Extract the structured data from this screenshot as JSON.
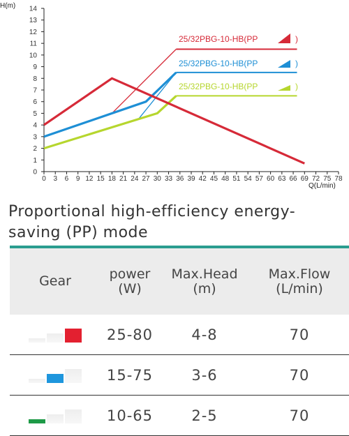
{
  "chart_data": {
    "type": "line",
    "ylabel": "H(m)",
    "xlabel": "Q(L/min)",
    "xlim": [
      0,
      78
    ],
    "ylim": [
      0,
      14
    ],
    "xticks": [
      0,
      3,
      6,
      9,
      12,
      15,
      18,
      21,
      24,
      27,
      30,
      33,
      36,
      39,
      42,
      45,
      48,
      51,
      54,
      57,
      60,
      63,
      66,
      69,
      72,
      75,
      78
    ],
    "yticks": [
      0,
      1,
      2,
      3,
      4,
      5,
      6,
      7,
      8,
      9,
      10,
      11,
      12,
      13,
      14
    ],
    "grid": false,
    "legend_position": "top-right",
    "series": [
      {
        "name": "25/32PBG-10-HB(PP",
        "legend_suffix": ")",
        "color": "#d62a38",
        "x": [
          0,
          18,
          69
        ],
        "y": [
          4.0,
          8.0,
          0.7
        ]
      },
      {
        "name": "25/32PBG-10-HB(PP",
        "legend_suffix": ")",
        "color": "#1e8fd5",
        "x": [
          0,
          27,
          35
        ],
        "y": [
          3.0,
          6.0,
          8.5
        ]
      },
      {
        "name": "25/32PBG-10-HB(PP",
        "legend_suffix": ")",
        "color": "#b6d62e",
        "x": [
          0,
          30,
          35
        ],
        "y": [
          2.0,
          5.0,
          6.5
        ]
      }
    ],
    "limit_lines": [
      {
        "color": "#d62a38",
        "x": [
          35,
          67
        ],
        "y": [
          10.5,
          10.5
        ]
      },
      {
        "color": "#1e8fd5",
        "x": [
          35,
          67
        ],
        "y": [
          8.5,
          8.5
        ]
      },
      {
        "color": "#b6d62e",
        "x": [
          35,
          67
        ],
        "y": [
          6.5,
          6.5
        ]
      }
    ],
    "leaders": [
      {
        "color": "#d62a38",
        "x": [
          18,
          35
        ],
        "y": [
          5.0,
          10.5
        ]
      },
      {
        "color": "#1e8fd5",
        "x": [
          25,
          35
        ],
        "y": [
          4.5,
          8.5
        ]
      },
      {
        "color": "#b6d62e",
        "x": [
          30,
          35
        ],
        "y": [
          5.0,
          6.5
        ]
      }
    ]
  },
  "mode_title": "Proportional high-efficiency energy-saving (PP) mode",
  "table": {
    "headers": [
      {
        "line1": "Gear",
        "line2": ""
      },
      {
        "line1": "power",
        "line2": "(W)"
      },
      {
        "line1": "Max.Head",
        "line2": "(m)"
      },
      {
        "line1": "Max.Flow",
        "line2": "(L/min)"
      }
    ],
    "rows": [
      {
        "gear_color": "#e32030",
        "gear_level": 3,
        "power": "25-80",
        "head": "4-8",
        "flow": "70"
      },
      {
        "gear_color": "#1e96dd",
        "gear_level": 2,
        "power": "15-75",
        "head": "3-6",
        "flow": "70"
      },
      {
        "gear_color": "#1e9a47",
        "gear_level": 1,
        "power": "10-65",
        "head": "2-5",
        "flow": "70"
      }
    ]
  }
}
